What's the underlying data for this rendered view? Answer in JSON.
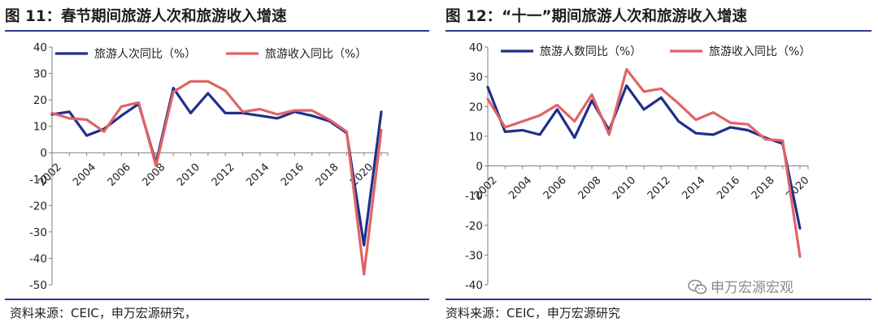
{
  "left_panel": {
    "title": "图 11：春节期间旅游人次和旅游收入增速",
    "source": "资料来源：CEIC，申万宏源研究，"
  },
  "right_panel": {
    "title": "图 12：“十一”期间旅游人次和旅游收入增速",
    "source": "资料来源：CEIC，申万宏源研究"
  },
  "watermark": {
    "text": "申万宏源宏观",
    "icon": "wechat-icon"
  },
  "chart_data": [
    {
      "type": "line",
      "title": "图 11：春节期间旅游人次和旅游收入增速",
      "x": [
        2002,
        2003,
        2004,
        2005,
        2006,
        2007,
        2008,
        2009,
        2010,
        2011,
        2012,
        2013,
        2014,
        2015,
        2016,
        2017,
        2018,
        2019,
        2020,
        2021
      ],
      "x_tick_labels": [
        "2002",
        "2004",
        "2006",
        "2008",
        "2010",
        "2012",
        "2014",
        "2016",
        "2018",
        "2020"
      ],
      "ylim": [
        -50,
        40
      ],
      "yticks": [
        -50,
        -40,
        -30,
        -20,
        -10,
        0,
        10,
        20,
        30,
        40
      ],
      "legend_position": "top",
      "grid": false,
      "series": [
        {
          "name": "旅游人次同比（%）",
          "color": "#1f2f8c",
          "values": [
            14.5,
            15.5,
            6.5,
            9,
            14,
            18.5,
            -4,
            24.5,
            15,
            22.5,
            15,
            15,
            14,
            13,
            15.5,
            14,
            12,
            7.5,
            -35,
            15.5
          ]
        },
        {
          "name": "旅游收入同比（%）",
          "color": "#e06464",
          "values": [
            15,
            13,
            12.5,
            8,
            17.5,
            19,
            -5,
            23,
            27,
            27,
            23.5,
            15.5,
            16.5,
            14.5,
            16,
            16,
            12.5,
            8,
            -46,
            8.5
          ]
        }
      ]
    },
    {
      "type": "line",
      "title": "图 12：“十一”期间旅游人次和旅游收入增速",
      "x": [
        2002,
        2003,
        2004,
        2005,
        2006,
        2007,
        2008,
        2009,
        2010,
        2011,
        2012,
        2013,
        2014,
        2015,
        2016,
        2017,
        2018,
        2019,
        2020
      ],
      "x_tick_labels": [
        "2002",
        "2004",
        "2006",
        "2008",
        "2010",
        "2012",
        "2014",
        "2016",
        "2018",
        "2020"
      ],
      "ylim": [
        -40,
        40
      ],
      "yticks": [
        -40,
        -30,
        -20,
        -10,
        0,
        10,
        20,
        30,
        40
      ],
      "legend_position": "top",
      "grid": false,
      "series": [
        {
          "name": "旅游人数同比（%）",
          "color": "#1f2f8c",
          "values": [
            26.5,
            11.5,
            12,
            10.5,
            19,
            9.5,
            22,
            12,
            27,
            19,
            23,
            15,
            11,
            10.5,
            13,
            12,
            9.5,
            7.5,
            -21
          ]
        },
        {
          "name": "旅游收入同比（%）",
          "color": "#e06464",
          "values": [
            22.5,
            13,
            15,
            17,
            20.5,
            15,
            24,
            10.5,
            32.5,
            25,
            26,
            21,
            15.5,
            18,
            14.5,
            14,
            9,
            8.5,
            -30.5
          ]
        }
      ]
    }
  ]
}
